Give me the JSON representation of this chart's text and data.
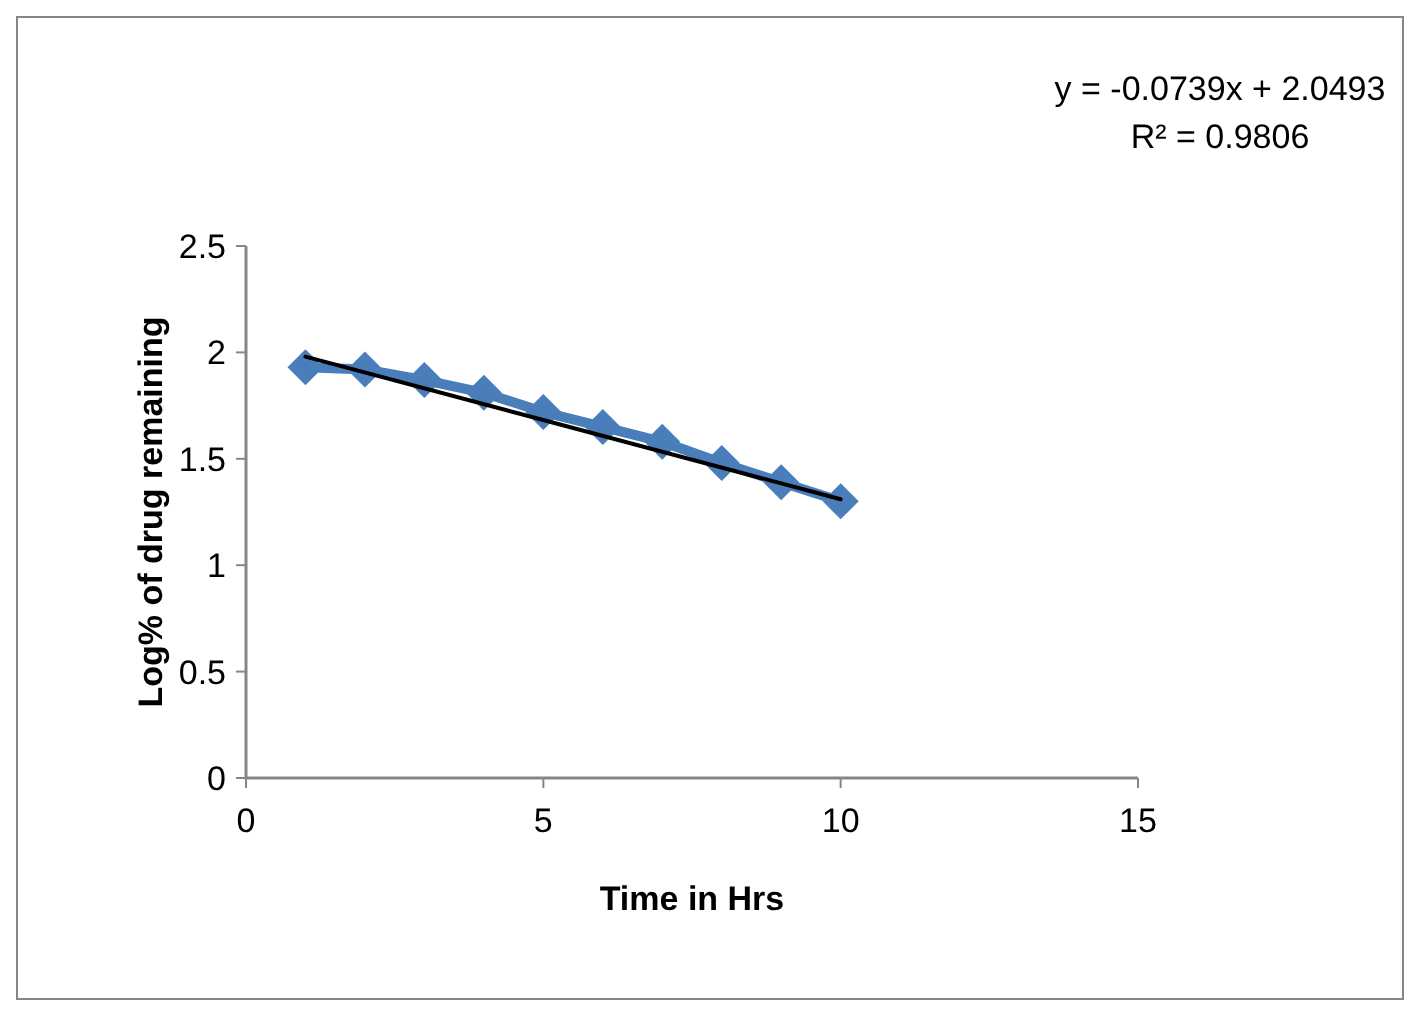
{
  "chart_data": {
    "type": "line",
    "xlabel": "Time in Hrs",
    "ylabel": "Log% of drug remaining",
    "x": [
      1,
      2,
      3,
      4,
      5,
      6,
      7,
      8,
      9,
      10
    ],
    "series": [
      {
        "color": "#4a7ebb",
        "values": [
          1.93,
          1.92,
          1.87,
          1.81,
          1.72,
          1.65,
          1.58,
          1.48,
          1.39,
          1.3
        ],
        "marker": "diamond"
      },
      {
        "type": "line",
        "color": "#000000",
        "x": [
          1,
          10
        ],
        "values": [
          1.98,
          1.31
        ],
        "marker": "none"
      }
    ],
    "xlim": [
      0,
      15
    ],
    "xticks": [
      0,
      5,
      10,
      15
    ],
    "ylim": [
      0,
      2.5
    ],
    "yticks": [
      0,
      0.5,
      1,
      1.5,
      2,
      2.5
    ],
    "grid": false,
    "annotations": [
      "y = -0.0739x + 2.0493",
      "R² = 0.9806"
    ]
  }
}
